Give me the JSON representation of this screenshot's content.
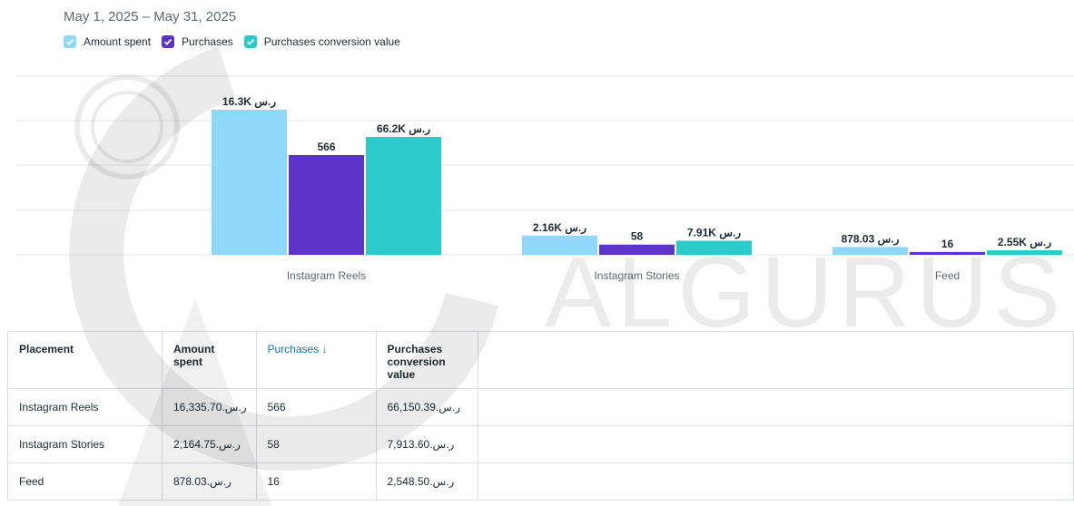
{
  "date_range": "May 1, 2025 – May 31, 2025",
  "legend": [
    {
      "label": "Amount spent",
      "color": "#8fd8fb"
    },
    {
      "label": "Purchases",
      "color": "#5c34c8"
    },
    {
      "label": "Purchases conversion value",
      "color": "#2ccbcb"
    }
  ],
  "chart_data": {
    "type": "bar",
    "categories": [
      "Instagram Reels",
      "Instagram Stories",
      "Feed"
    ],
    "series": [
      {
        "name": "Amount spent",
        "values": [
          16335.7,
          2164.75,
          878.03
        ],
        "labels": [
          "16.3K ر.س",
          "2.16K ر.س",
          "878.03 ر.س"
        ],
        "color": "#8fd8fb"
      },
      {
        "name": "Purchases",
        "values": [
          566,
          58,
          16
        ],
        "labels": [
          "566",
          "58",
          "16"
        ],
        "color": "#5c34c8"
      },
      {
        "name": "Purchases conversion value",
        "values": [
          66150.39,
          7913.6,
          2548.5
        ],
        "labels": [
          "66.2K ر.س",
          "7.91K ر.س",
          "2.55K ر.س"
        ],
        "color": "#2ccbcb"
      }
    ],
    "legend_position": "top-left",
    "grid": true
  },
  "table": {
    "headers": [
      "Placement",
      "Amount spent",
      "Purchases ↓",
      "Purchases conversion value"
    ],
    "rows": [
      [
        "Instagram Reels",
        "16,335.70.ر.س",
        "566",
        "66,150.39.ر.س"
      ],
      [
        "Instagram Stories",
        "2,164.75.ر.س",
        "58",
        "7,913.60.ر.س"
      ],
      [
        "Feed",
        "878.03.ر.س",
        "16",
        "2,548.50.ر.س"
      ]
    ]
  },
  "watermark": "ALGURUS"
}
